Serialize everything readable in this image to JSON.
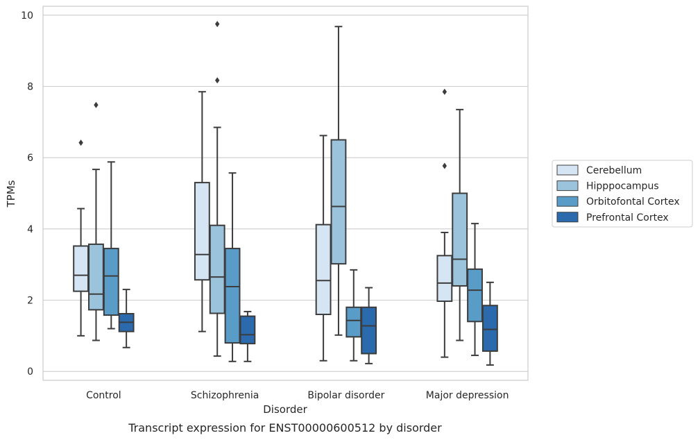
{
  "chart_data": {
    "type": "box",
    "caption": "Transcript expression for ENST00000600512 by disorder",
    "xlabel": "Disorder",
    "ylabel": "TPMs",
    "ylim": [
      -0.25,
      10.25
    ],
    "yticks": [
      "0",
      "2",
      "4",
      "6",
      "8",
      "10"
    ],
    "grid": "horizontal",
    "legend_position": "right",
    "categories": [
      "Control",
      "Schizophrenia",
      "Bipolar disorder",
      "Major depression"
    ],
    "series": [
      {
        "name": "Cerebellum",
        "color": "#d6e5f4",
        "boxes": [
          {
            "whisker_low": 1.0,
            "q1": 2.25,
            "median": 2.7,
            "q3": 3.52,
            "whisker_high": 4.57,
            "outliers": [
              6.42
            ]
          },
          {
            "whisker_low": 1.12,
            "q1": 2.57,
            "median": 3.28,
            "q3": 5.3,
            "whisker_high": 7.85,
            "outliers": []
          },
          {
            "whisker_low": 0.3,
            "q1": 1.6,
            "median": 2.55,
            "q3": 4.12,
            "whisker_high": 6.62,
            "outliers": []
          },
          {
            "whisker_low": 0.4,
            "q1": 1.97,
            "median": 2.48,
            "q3": 3.25,
            "whisker_high": 3.9,
            "outliers": [
              5.77,
              7.85
            ]
          }
        ]
      },
      {
        "name": "Hipppocampus",
        "color": "#9cc3dc",
        "boxes": [
          {
            "whisker_low": 0.87,
            "q1": 1.73,
            "median": 2.17,
            "q3": 3.57,
            "whisker_high": 5.67,
            "outliers": [
              7.48
            ]
          },
          {
            "whisker_low": 0.43,
            "q1": 1.63,
            "median": 2.65,
            "q3": 4.1,
            "whisker_high": 6.85,
            "outliers": [
              8.17,
              9.75
            ]
          },
          {
            "whisker_low": 1.02,
            "q1": 3.02,
            "median": 4.63,
            "q3": 6.5,
            "whisker_high": 9.68,
            "outliers": []
          },
          {
            "whisker_low": 0.87,
            "q1": 2.4,
            "median": 3.15,
            "q3": 5.0,
            "whisker_high": 7.35,
            "outliers": []
          }
        ]
      },
      {
        "name": "Orbitofontal Cortex",
        "color": "#5a9cc8",
        "boxes": [
          {
            "whisker_low": 1.2,
            "q1": 1.58,
            "median": 2.68,
            "q3": 3.45,
            "whisker_high": 5.88,
            "outliers": []
          },
          {
            "whisker_low": 0.28,
            "q1": 0.8,
            "median": 2.38,
            "q3": 3.45,
            "whisker_high": 5.57,
            "outliers": []
          },
          {
            "whisker_low": 0.3,
            "q1": 0.97,
            "median": 1.43,
            "q3": 1.8,
            "whisker_high": 2.85,
            "outliers": []
          },
          {
            "whisker_low": 0.45,
            "q1": 1.4,
            "median": 2.28,
            "q3": 2.87,
            "whisker_high": 4.15,
            "outliers": []
          }
        ]
      },
      {
        "name": "Prefrontal Cortex",
        "color": "#2a6aad",
        "boxes": [
          {
            "whisker_low": 0.67,
            "q1": 1.12,
            "median": 1.38,
            "q3": 1.62,
            "whisker_high": 2.3,
            "outliers": []
          },
          {
            "whisker_low": 0.28,
            "q1": 0.78,
            "median": 1.03,
            "q3": 1.55,
            "whisker_high": 1.68,
            "outliers": []
          },
          {
            "whisker_low": 0.22,
            "q1": 0.5,
            "median": 1.28,
            "q3": 1.8,
            "whisker_high": 2.35,
            "outliers": []
          },
          {
            "whisker_low": 0.18,
            "q1": 0.57,
            "median": 1.18,
            "q3": 1.85,
            "whisker_high": 2.5,
            "outliers": []
          }
        ]
      }
    ]
  }
}
